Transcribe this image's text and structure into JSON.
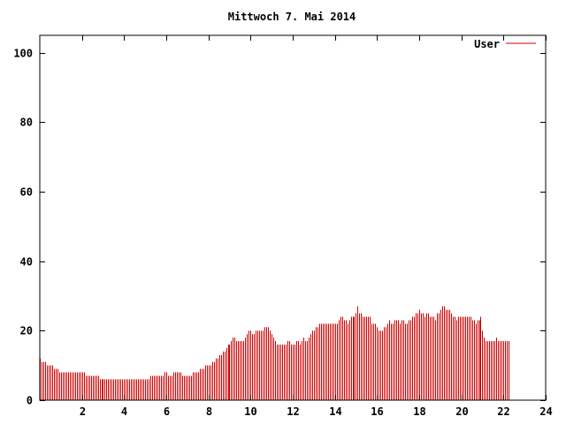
{
  "chart_data": {
    "type": "bar",
    "title": "Mittwoch 7. Mai 2014",
    "xlabel": "",
    "ylabel": "",
    "xlim": [
      0,
      24
    ],
    "ylim": [
      0,
      105
    ],
    "x_ticks": [
      2,
      4,
      6,
      8,
      10,
      12,
      14,
      16,
      18,
      20,
      22,
      24
    ],
    "y_ticks": [
      0,
      20,
      40,
      60,
      80,
      100
    ],
    "grid": false,
    "legend": {
      "placement": "top-right"
    },
    "colors": {
      "series": "#cc0000",
      "axis": "#000000",
      "background": "#ffffff"
    },
    "sample_interval_hours": 0.08333,
    "series": [
      {
        "name": "User",
        "values": [
          12,
          11,
          11,
          11,
          10,
          10,
          10,
          10,
          9,
          9,
          9,
          8,
          8,
          8,
          8,
          8,
          8,
          8,
          8,
          8,
          8,
          8,
          8,
          8,
          8,
          8,
          7,
          7,
          7,
          7,
          7,
          7,
          7,
          7,
          6,
          6,
          6,
          6,
          6,
          6,
          6,
          6,
          6,
          6,
          6,
          6,
          6,
          6,
          6,
          6,
          6,
          6,
          6,
          6,
          6,
          6,
          6,
          6,
          6,
          6,
          6,
          6,
          6,
          7,
          7,
          7,
          7,
          7,
          7,
          7,
          7,
          8,
          8,
          7,
          7,
          7,
          8,
          8,
          8,
          8,
          8,
          7,
          7,
          7,
          7,
          7,
          7,
          8,
          8,
          8,
          8,
          9,
          9,
          9,
          10,
          10,
          10,
          10,
          11,
          11,
          12,
          12,
          13,
          13,
          14,
          14,
          15,
          16,
          16,
          17,
          18,
          18,
          17,
          17,
          17,
          17,
          17,
          18,
          19,
          20,
          20,
          19,
          19,
          20,
          20,
          20,
          20,
          20,
          21,
          21,
          21,
          20,
          19,
          18,
          17,
          16,
          16,
          16,
          16,
          16,
          16,
          17,
          17,
          16,
          16,
          16,
          17,
          17,
          16,
          17,
          18,
          17,
          17,
          18,
          19,
          20,
          20,
          21,
          21,
          22,
          22,
          22,
          22,
          22,
          22,
          22,
          22,
          22,
          22,
          22,
          23,
          24,
          24,
          23,
          23,
          22,
          23,
          24,
          24,
          24,
          25,
          27,
          25,
          25,
          24,
          24,
          24,
          24,
          24,
          22,
          22,
          22,
          21,
          20,
          20,
          20,
          21,
          21,
          22,
          23,
          22,
          22,
          23,
          23,
          23,
          22,
          23,
          23,
          22,
          22,
          23,
          23,
          24,
          24,
          25,
          25,
          26,
          25,
          25,
          24,
          25,
          25,
          24,
          24,
          24,
          23,
          25,
          25,
          26,
          27,
          27,
          26,
          26,
          26,
          25,
          24,
          24,
          23,
          24,
          24,
          24,
          24,
          24,
          24,
          24,
          24,
          23,
          23,
          22,
          23,
          23,
          24,
          20,
          18,
          17,
          17,
          17,
          17,
          17,
          17,
          18,
          17,
          17,
          17,
          17,
          17,
          17,
          17
        ]
      }
    ]
  }
}
